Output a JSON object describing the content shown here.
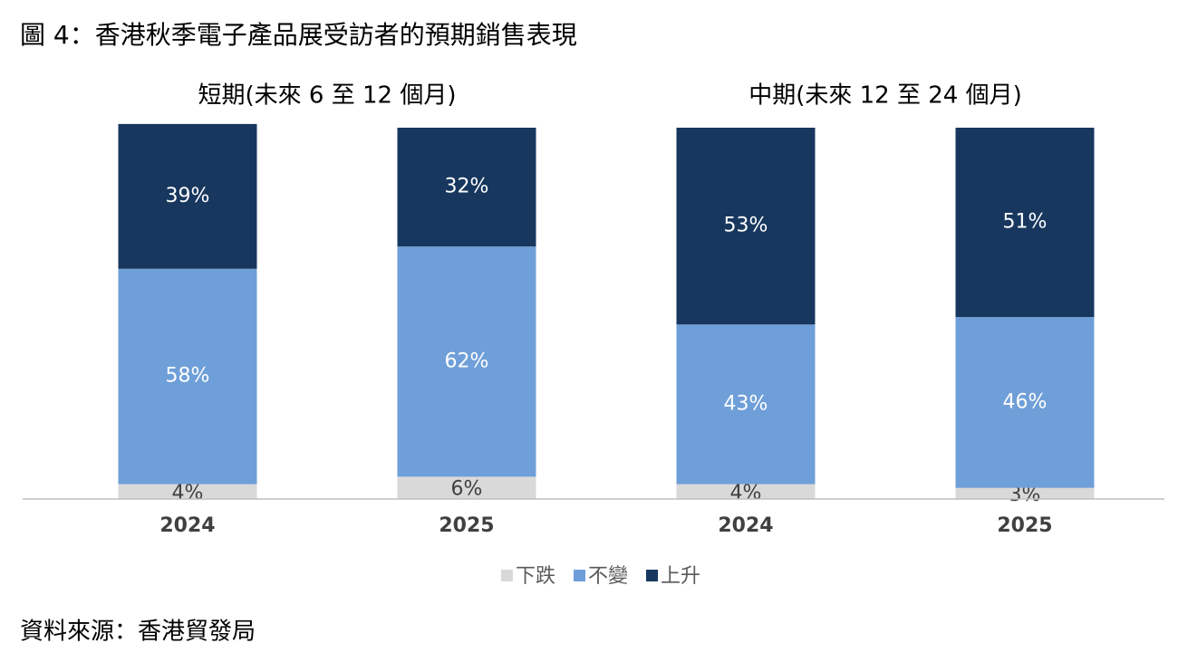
{
  "chart_data": {
    "type": "stacked_bar",
    "title": "圖 4：香港秋季電子產品展受訪者的預期銷售表現",
    "group_labels": [
      "短期(未來 6 至 12 個月)",
      "中期(未來 12 至 24 個月)"
    ],
    "categories": [
      "2024",
      "2025",
      "2024",
      "2025"
    ],
    "ylim": [
      0,
      100
    ],
    "series": [
      {
        "name": "下跌",
        "color": "#d9d9d9",
        "values": [
          4,
          6,
          4,
          3
        ],
        "value_labels": [
          "4%",
          "6%",
          "4%",
          "3%"
        ]
      },
      {
        "name": "不變",
        "color": "#6f9fd8",
        "values": [
          58,
          62,
          43,
          46
        ],
        "value_labels": [
          "58%",
          "62%",
          "43%",
          "46%"
        ]
      },
      {
        "name": "上升",
        "color": "#17375e",
        "values": [
          39,
          32,
          53,
          51
        ],
        "value_labels": [
          "39%",
          "32%",
          "53%",
          "51%"
        ]
      }
    ],
    "source": "資料來源：香港貿發局"
  }
}
